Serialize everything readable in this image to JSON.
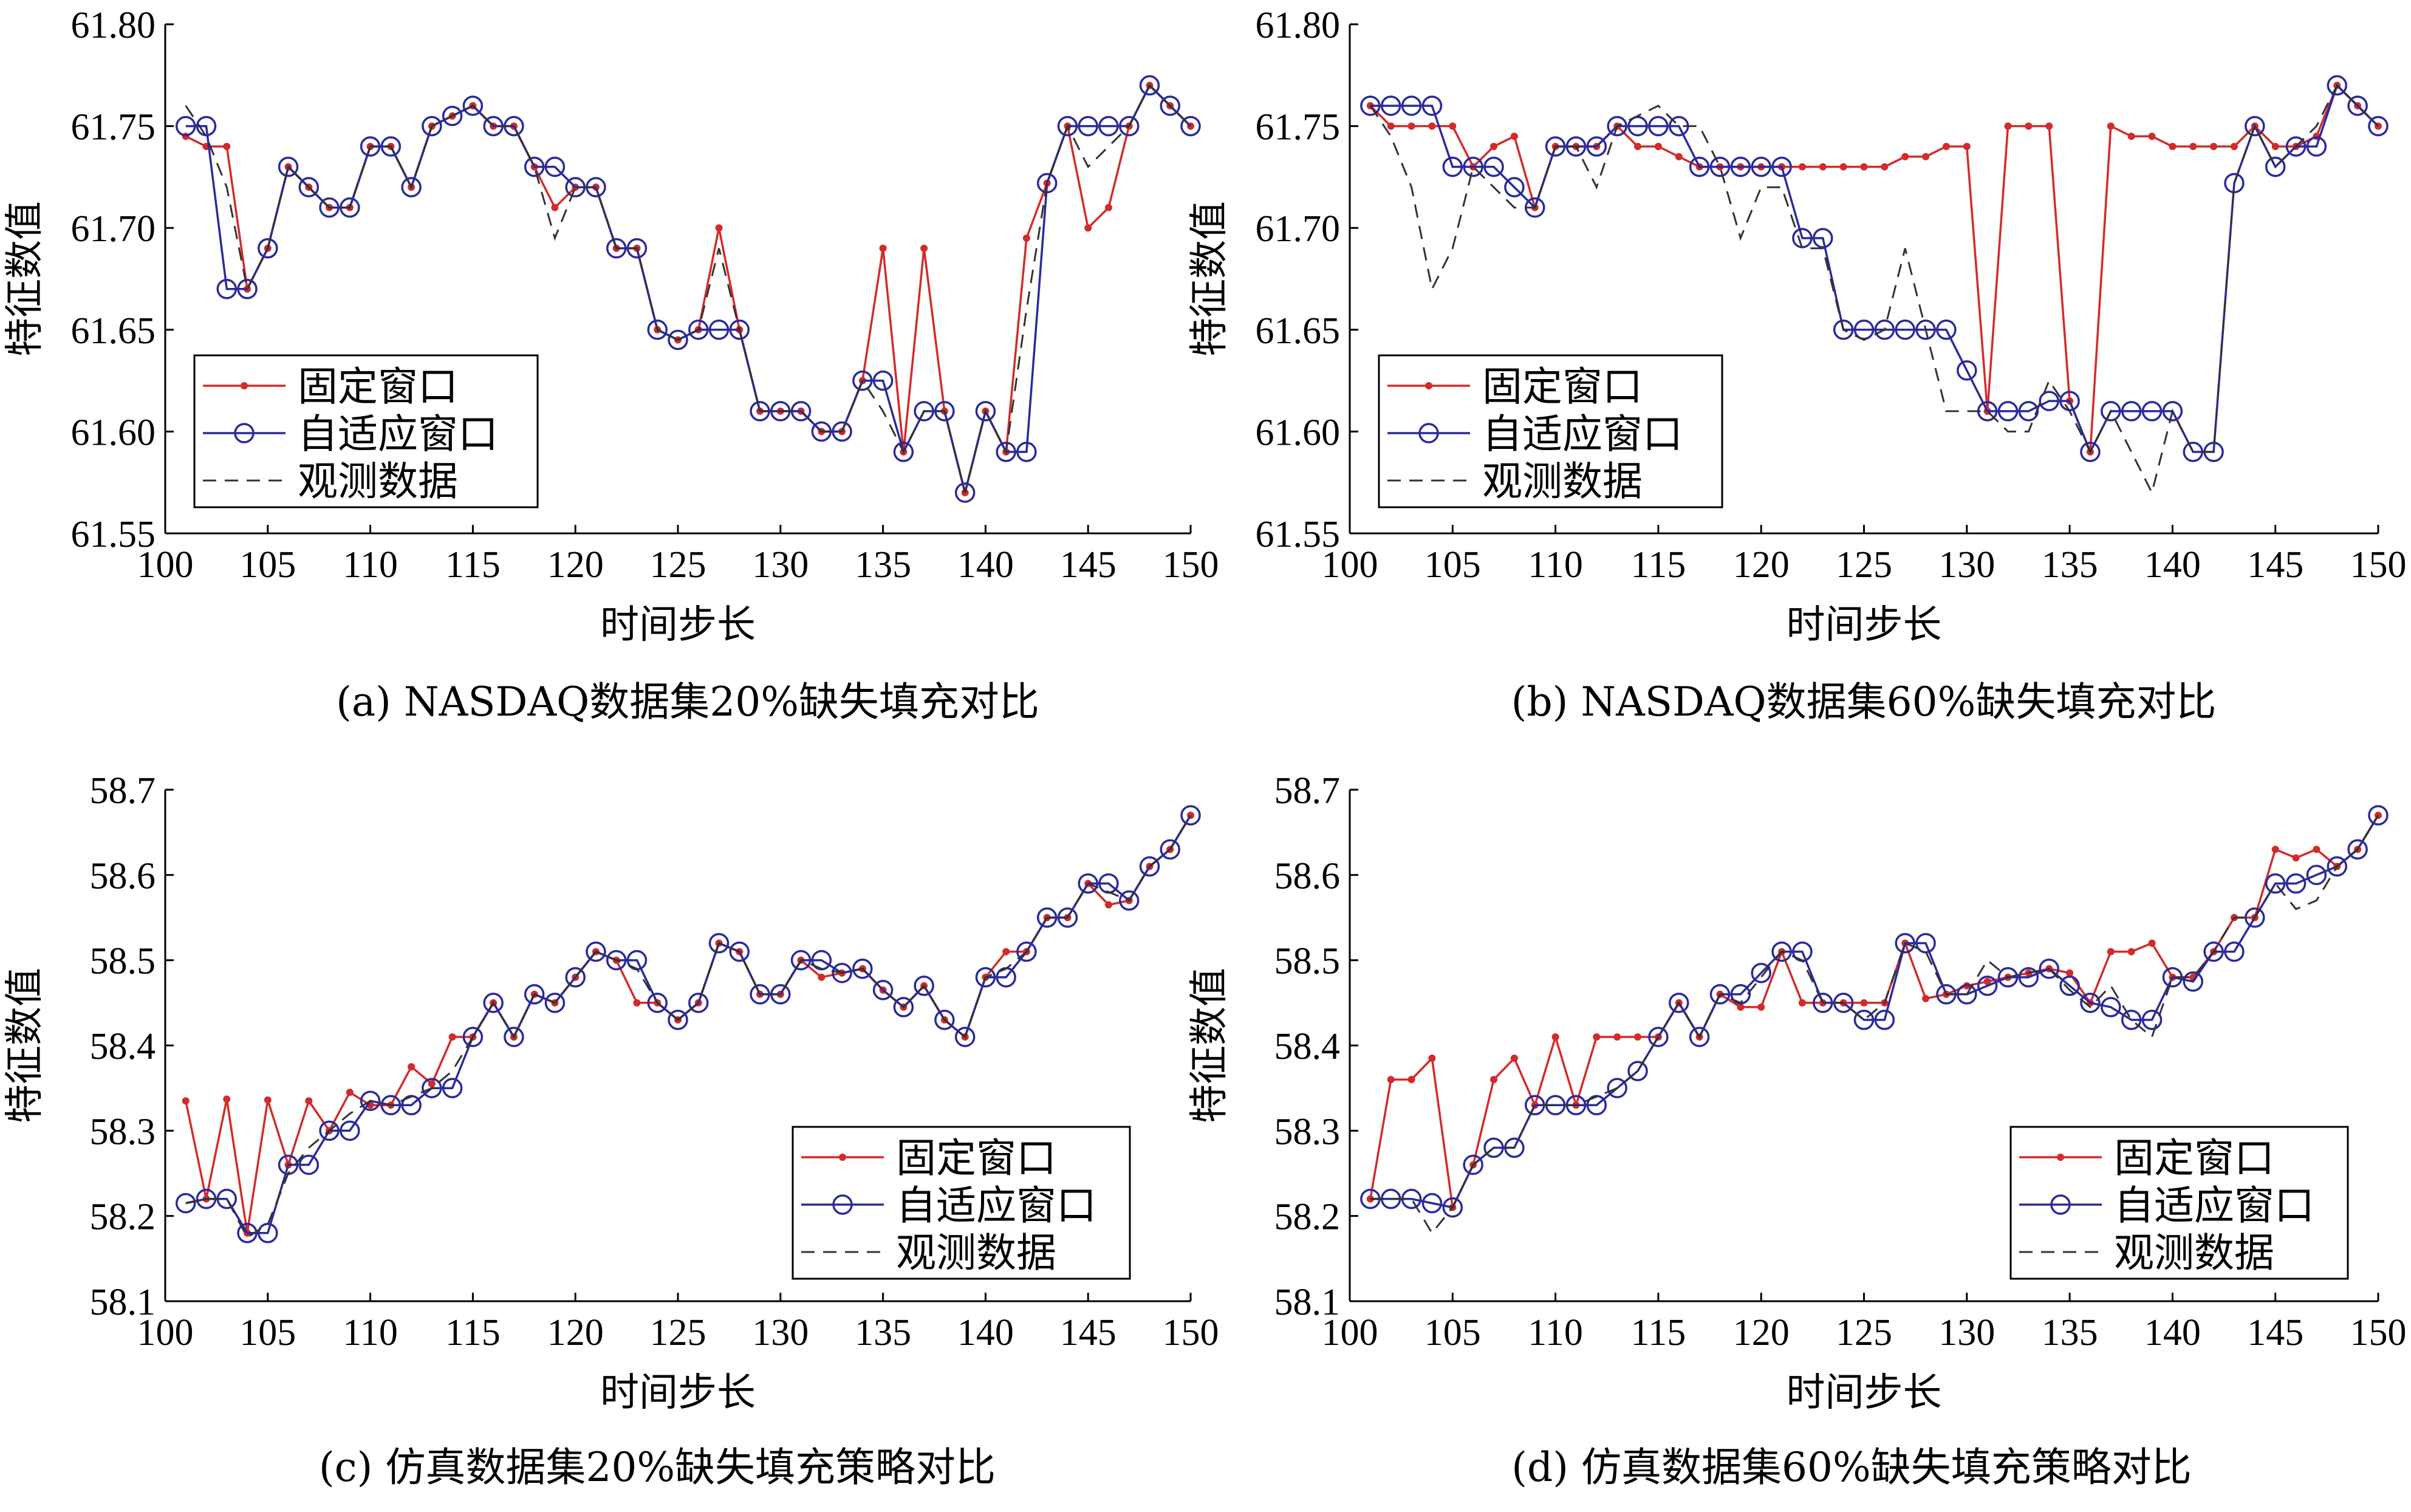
{
  "colors": {
    "fixed": "#d42a2a",
    "adaptive": "#2a2a9c",
    "observed": "#333333"
  },
  "legend": {
    "fixed": "固定窗口",
    "adaptive": "自适应窗口",
    "observed": "观测数据"
  },
  "chart_data": [
    {
      "type": "line",
      "caption": "(a) NASDAQ数据集20%缺失填充对比",
      "xlabel": "时间步长",
      "ylabel": "特征数值",
      "xlim": [
        100,
        150
      ],
      "ylim": [
        61.55,
        61.8
      ],
      "xticks": [
        "100",
        "105",
        "110",
        "115",
        "120",
        "125",
        "130",
        "135",
        "140",
        "145",
        "150"
      ],
      "yticks": [
        "61.55",
        "61.60",
        "61.65",
        "61.70",
        "61.75",
        "61.80"
      ],
      "x": [
        101,
        102,
        103,
        104,
        105,
        106,
        107,
        108,
        109,
        110,
        111,
        112,
        113,
        114,
        115,
        116,
        117,
        118,
        119,
        120,
        121,
        122,
        123,
        124,
        125,
        126,
        127,
        128,
        129,
        130,
        131,
        132,
        133,
        134,
        135,
        136,
        137,
        138,
        139,
        140,
        141,
        142,
        143,
        144,
        145,
        146,
        147,
        148,
        149,
        150
      ],
      "series": [
        {
          "name": "固定窗口",
          "values": [
            61.745,
            61.74,
            61.74,
            61.67,
            61.69,
            61.73,
            61.72,
            61.71,
            61.71,
            61.74,
            61.74,
            61.72,
            61.75,
            61.755,
            61.76,
            61.75,
            61.75,
            61.73,
            61.71,
            61.72,
            61.72,
            61.69,
            61.69,
            61.65,
            61.645,
            61.65,
            61.7,
            61.65,
            61.61,
            61.61,
            61.61,
            61.6,
            61.6,
            61.625,
            61.69,
            61.59,
            61.69,
            61.61,
            61.57,
            61.61,
            61.59,
            61.695,
            61.722,
            61.75,
            61.7,
            61.71,
            61.75,
            61.77,
            61.76,
            61.75
          ]
        },
        {
          "name": "自适应窗口",
          "values": [
            61.75,
            61.75,
            61.67,
            61.67,
            61.69,
            61.73,
            61.72,
            61.71,
            61.71,
            61.74,
            61.74,
            61.72,
            61.75,
            61.755,
            61.76,
            61.75,
            61.75,
            61.73,
            61.73,
            61.72,
            61.72,
            61.69,
            61.69,
            61.65,
            61.645,
            61.65,
            61.65,
            61.65,
            61.61,
            61.61,
            61.61,
            61.6,
            61.6,
            61.625,
            61.625,
            61.59,
            61.61,
            61.61,
            61.57,
            61.61,
            61.59,
            61.59,
            61.722,
            61.75,
            61.75,
            61.75,
            61.75,
            61.77,
            61.76,
            61.75
          ]
        },
        {
          "name": "观测数据",
          "values": [
            61.76,
            61.745,
            61.72,
            61.67,
            61.69,
            61.73,
            61.72,
            61.71,
            61.71,
            61.74,
            61.74,
            61.72,
            61.75,
            61.755,
            61.76,
            61.75,
            61.75,
            61.73,
            61.695,
            61.72,
            61.72,
            61.69,
            61.69,
            61.65,
            61.645,
            61.65,
            61.69,
            61.65,
            61.61,
            61.61,
            61.61,
            61.6,
            61.6,
            61.625,
            61.61,
            61.59,
            61.61,
            61.61,
            61.57,
            61.61,
            61.59,
            61.66,
            61.722,
            61.75,
            61.73,
            61.74,
            61.75,
            61.77,
            61.76,
            61.75
          ]
        }
      ]
    },
    {
      "type": "line",
      "caption": "(b) NASDAQ数据集60%缺失填充对比",
      "xlabel": "时间步长",
      "ylabel": "特征数值",
      "xlim": [
        100,
        150
      ],
      "ylim": [
        61.55,
        61.8
      ],
      "xticks": [
        "100",
        "105",
        "110",
        "115",
        "120",
        "125",
        "130",
        "135",
        "140",
        "145",
        "150"
      ],
      "yticks": [
        "61.55",
        "61.60",
        "61.65",
        "61.70",
        "61.75",
        "61.80"
      ],
      "x": [
        101,
        102,
        103,
        104,
        105,
        106,
        107,
        108,
        109,
        110,
        111,
        112,
        113,
        114,
        115,
        116,
        117,
        118,
        119,
        120,
        121,
        122,
        123,
        124,
        125,
        126,
        127,
        128,
        129,
        130,
        131,
        132,
        133,
        134,
        135,
        136,
        137,
        138,
        139,
        140,
        141,
        142,
        143,
        144,
        145,
        146,
        147,
        148,
        149,
        150
      ],
      "series": [
        {
          "name": "固定窗口",
          "values": [
            61.76,
            61.75,
            61.75,
            61.75,
            61.75,
            61.73,
            61.74,
            61.745,
            61.71,
            61.74,
            61.74,
            61.74,
            61.75,
            61.74,
            61.74,
            61.735,
            61.73,
            61.73,
            61.73,
            61.73,
            61.73,
            61.73,
            61.73,
            61.73,
            61.73,
            61.73,
            61.735,
            61.735,
            61.74,
            61.74,
            61.61,
            61.75,
            61.75,
            61.75,
            61.615,
            61.59,
            61.75,
            61.745,
            61.745,
            61.74,
            61.74,
            61.74,
            61.74,
            61.75,
            61.74,
            61.74,
            61.745,
            61.77,
            61.76,
            61.75
          ]
        },
        {
          "name": "自适应窗口",
          "values": [
            61.76,
            61.76,
            61.76,
            61.76,
            61.73,
            61.73,
            61.73,
            61.72,
            61.71,
            61.74,
            61.74,
            61.74,
            61.75,
            61.75,
            61.75,
            61.75,
            61.73,
            61.73,
            61.73,
            61.73,
            61.73,
            61.695,
            61.695,
            61.65,
            61.65,
            61.65,
            61.65,
            61.65,
            61.65,
            61.63,
            61.61,
            61.61,
            61.61,
            61.615,
            61.615,
            61.59,
            61.61,
            61.61,
            61.61,
            61.61,
            61.59,
            61.59,
            61.722,
            61.75,
            61.73,
            61.74,
            61.74,
            61.77,
            61.76,
            61.75
          ]
        },
        {
          "name": "观测数据",
          "values": [
            61.76,
            61.745,
            61.72,
            61.67,
            61.69,
            61.73,
            61.72,
            61.71,
            61.71,
            61.74,
            61.74,
            61.72,
            61.75,
            61.755,
            61.76,
            61.75,
            61.75,
            61.73,
            61.695,
            61.72,
            61.72,
            61.69,
            61.69,
            61.65,
            61.645,
            61.65,
            61.69,
            61.65,
            61.61,
            61.61,
            61.61,
            61.6,
            61.6,
            61.625,
            61.61,
            61.59,
            61.61,
            61.59,
            61.57,
            61.61,
            61.59,
            61.59,
            61.722,
            61.75,
            61.73,
            61.74,
            61.75,
            61.77,
            61.76,
            61.75
          ]
        }
      ]
    },
    {
      "type": "line",
      "caption": "(c) 仿真数据集20%缺失填充策略对比",
      "xlabel": "时间步长",
      "ylabel": "特征数值",
      "xlim": [
        100,
        150
      ],
      "ylim": [
        58.1,
        58.7
      ],
      "xticks": [
        "100",
        "105",
        "110",
        "115",
        "120",
        "125",
        "130",
        "135",
        "140",
        "145",
        "150"
      ],
      "yticks": [
        "58.1",
        "58.2",
        "58.3",
        "58.4",
        "58.5",
        "58.6",
        "58.7"
      ],
      "x": [
        101,
        102,
        103,
        104,
        105,
        106,
        107,
        108,
        109,
        110,
        111,
        112,
        113,
        114,
        115,
        116,
        117,
        118,
        119,
        120,
        121,
        122,
        123,
        124,
        125,
        126,
        127,
        128,
        129,
        130,
        131,
        132,
        133,
        134,
        135,
        136,
        137,
        138,
        139,
        140,
        141,
        142,
        143,
        144,
        145,
        146,
        147,
        148,
        149,
        150
      ],
      "series": [
        {
          "name": "固定窗口",
          "values": [
            58.335,
            58.22,
            58.337,
            58.18,
            58.336,
            58.26,
            58.335,
            58.3,
            58.345,
            58.33,
            58.33,
            58.375,
            58.355,
            58.41,
            58.41,
            58.45,
            58.41,
            58.46,
            58.45,
            58.48,
            58.51,
            58.5,
            58.45,
            58.45,
            58.43,
            58.45,
            58.52,
            58.51,
            58.46,
            58.46,
            58.5,
            58.48,
            58.485,
            58.49,
            58.465,
            58.445,
            58.47,
            58.43,
            58.41,
            58.48,
            58.51,
            58.51,
            58.55,
            58.55,
            58.59,
            58.565,
            58.57,
            58.61,
            58.63,
            58.67
          ]
        },
        {
          "name": "自适应窗口",
          "values": [
            58.215,
            58.22,
            58.22,
            58.18,
            58.18,
            58.26,
            58.26,
            58.3,
            58.3,
            58.335,
            58.33,
            58.33,
            58.35,
            58.35,
            58.41,
            58.45,
            58.41,
            58.46,
            58.45,
            58.48,
            58.51,
            58.5,
            58.5,
            58.45,
            58.43,
            58.45,
            58.52,
            58.51,
            58.46,
            58.46,
            58.5,
            58.5,
            58.485,
            58.49,
            58.465,
            58.445,
            58.47,
            58.43,
            58.41,
            58.48,
            58.48,
            58.51,
            58.55,
            58.55,
            58.59,
            58.59,
            58.57,
            58.61,
            58.63,
            58.67
          ]
        },
        {
          "name": "观测数据",
          "values": [
            58.215,
            58.22,
            58.22,
            58.175,
            58.19,
            58.25,
            58.28,
            58.3,
            58.32,
            58.335,
            58.33,
            58.34,
            58.35,
            58.37,
            58.41,
            58.45,
            58.41,
            58.46,
            58.45,
            58.48,
            58.51,
            58.5,
            58.49,
            58.45,
            58.43,
            58.45,
            58.52,
            58.51,
            58.46,
            58.46,
            58.5,
            58.49,
            58.485,
            58.49,
            58.465,
            58.445,
            58.47,
            58.43,
            58.41,
            58.48,
            58.49,
            58.51,
            58.55,
            58.55,
            58.59,
            58.58,
            58.57,
            58.61,
            58.63,
            58.67
          ]
        }
      ]
    },
    {
      "type": "line",
      "caption": "(d) 仿真数据集60%缺失填充策略对比",
      "xlabel": "时间步长",
      "ylabel": "特征数值",
      "xlim": [
        100,
        150
      ],
      "ylim": [
        58.1,
        58.7
      ],
      "xticks": [
        "100",
        "105",
        "110",
        "115",
        "120",
        "125",
        "130",
        "135",
        "140",
        "145",
        "150"
      ],
      "yticks": [
        "58.1",
        "58.2",
        "58.3",
        "58.4",
        "58.5",
        "58.6",
        "58.7"
      ],
      "x": [
        101,
        102,
        103,
        104,
        105,
        106,
        107,
        108,
        109,
        110,
        111,
        112,
        113,
        114,
        115,
        116,
        117,
        118,
        119,
        120,
        121,
        122,
        123,
        124,
        125,
        126,
        127,
        128,
        129,
        130,
        131,
        132,
        133,
        134,
        135,
        136,
        137,
        138,
        139,
        140,
        141,
        142,
        143,
        144,
        145,
        146,
        147,
        148,
        149,
        150
      ],
      "series": [
        {
          "name": "固定窗口",
          "values": [
            58.22,
            58.36,
            58.36,
            58.385,
            58.21,
            58.26,
            58.36,
            58.385,
            58.33,
            58.41,
            58.33,
            58.41,
            58.41,
            58.41,
            58.41,
            58.45,
            58.41,
            58.46,
            58.445,
            58.445,
            58.51,
            58.45,
            58.45,
            58.45,
            58.45,
            58.45,
            58.52,
            58.455,
            58.46,
            58.47,
            58.475,
            58.48,
            58.485,
            58.49,
            58.485,
            58.45,
            58.51,
            58.51,
            58.52,
            58.48,
            58.48,
            58.51,
            58.55,
            58.55,
            58.63,
            58.62,
            58.63,
            58.61,
            58.63,
            58.67
          ]
        },
        {
          "name": "自适应窗口",
          "values": [
            58.22,
            58.22,
            58.22,
            58.215,
            58.21,
            58.26,
            58.28,
            58.28,
            58.33,
            58.33,
            58.33,
            58.33,
            58.35,
            58.37,
            58.41,
            58.45,
            58.41,
            58.46,
            58.46,
            58.485,
            58.51,
            58.51,
            58.45,
            58.45,
            58.43,
            58.43,
            58.52,
            58.52,
            58.46,
            58.46,
            58.47,
            58.48,
            58.48,
            58.49,
            58.47,
            58.45,
            58.445,
            58.43,
            58.43,
            58.48,
            58.475,
            58.51,
            58.51,
            58.55,
            58.59,
            58.59,
            58.6,
            58.61,
            58.63,
            58.67
          ]
        },
        {
          "name": "观测数据",
          "values": [
            58.22,
            58.22,
            58.22,
            58.18,
            58.21,
            58.26,
            58.28,
            58.28,
            58.33,
            58.33,
            58.33,
            58.34,
            58.35,
            58.37,
            58.41,
            58.45,
            58.41,
            58.46,
            58.45,
            58.48,
            58.51,
            58.5,
            58.45,
            58.45,
            58.43,
            58.45,
            58.52,
            58.51,
            58.46,
            58.46,
            58.5,
            58.48,
            58.485,
            58.49,
            58.465,
            58.445,
            58.47,
            58.43,
            58.41,
            58.48,
            58.48,
            58.51,
            58.55,
            58.55,
            58.59,
            58.56,
            58.57,
            58.61,
            58.63,
            58.67
          ]
        }
      ]
    }
  ]
}
